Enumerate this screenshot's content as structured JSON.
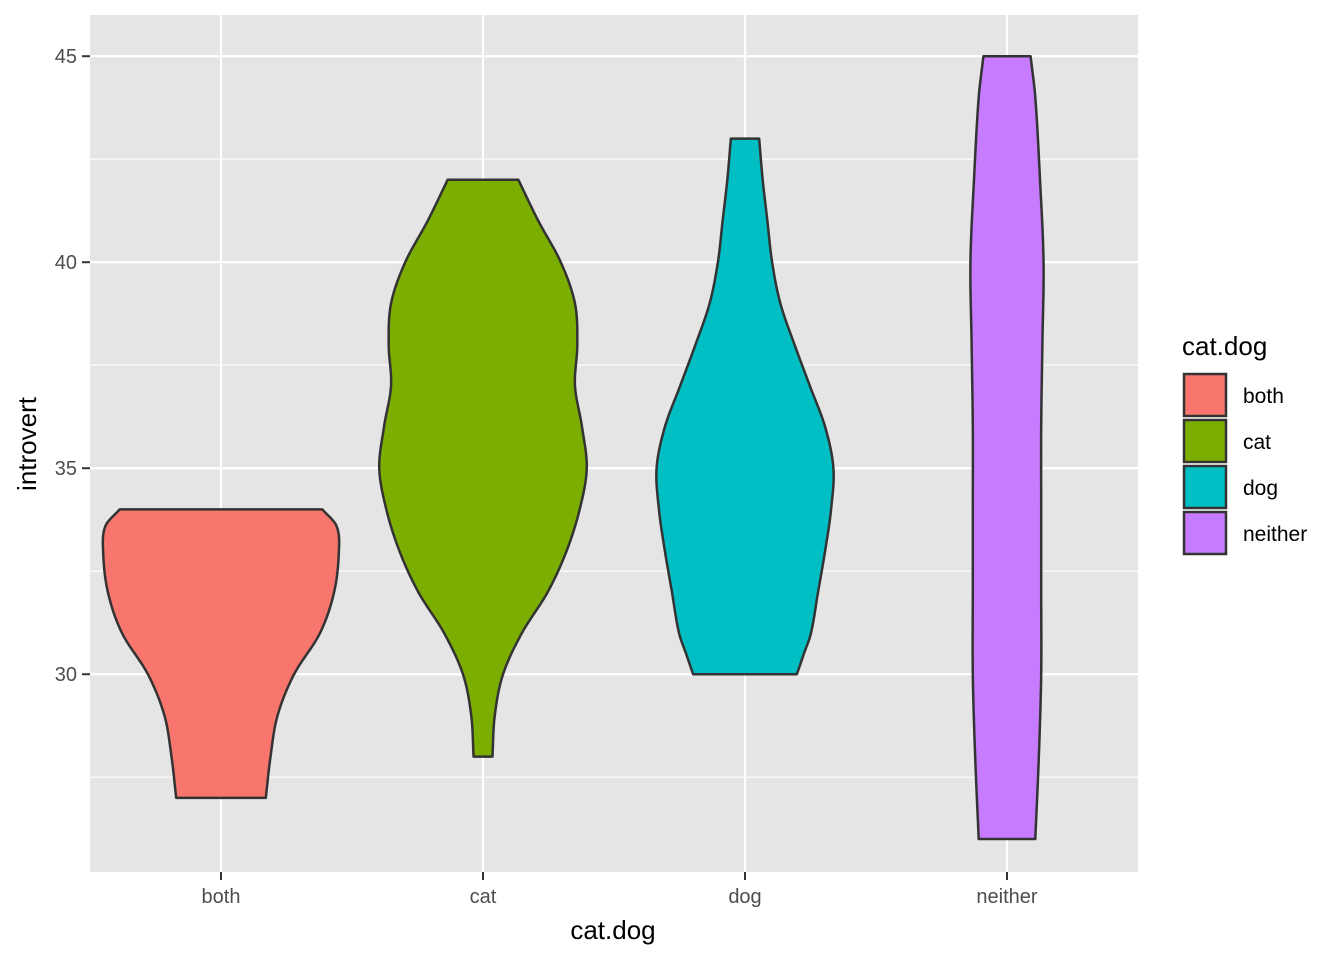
{
  "chart_data": {
    "type": "violin",
    "xlabel": "cat.dog",
    "ylabel": "introvert",
    "ylim": [
      25.2,
      46.0
    ],
    "y_ticks": [
      30,
      35,
      40,
      45
    ],
    "grid": true,
    "categories": [
      "both",
      "cat",
      "dog",
      "neither"
    ],
    "series": [
      {
        "name": "both",
        "color": "#F8766D",
        "range": [
          27,
          34
        ],
        "profile": [
          [
            27,
            0.38
          ],
          [
            28,
            0.42
          ],
          [
            29,
            0.48
          ],
          [
            30,
            0.62
          ],
          [
            31,
            0.84
          ],
          [
            32,
            0.96
          ],
          [
            33,
            1.0
          ],
          [
            33.6,
            0.98
          ],
          [
            34,
            0.86
          ]
        ]
      },
      {
        "name": "cat",
        "color": "#7CAE00",
        "range": [
          28,
          42
        ],
        "profile": [
          [
            28,
            0.08
          ],
          [
            29,
            0.1
          ],
          [
            30,
            0.17
          ],
          [
            31,
            0.33
          ],
          [
            32,
            0.55
          ],
          [
            33,
            0.71
          ],
          [
            34,
            0.82
          ],
          [
            35,
            0.88
          ],
          [
            36,
            0.84
          ],
          [
            37,
            0.78
          ],
          [
            38,
            0.8
          ],
          [
            39,
            0.78
          ],
          [
            40,
            0.66
          ],
          [
            41,
            0.47
          ],
          [
            42,
            0.3
          ]
        ]
      },
      {
        "name": "dog",
        "color": "#00BFC4",
        "range": [
          30,
          43
        ],
        "profile": [
          [
            30,
            0.44
          ],
          [
            30.5,
            0.5
          ],
          [
            31,
            0.56
          ],
          [
            32,
            0.62
          ],
          [
            33,
            0.68
          ],
          [
            34,
            0.73
          ],
          [
            35,
            0.75
          ],
          [
            36,
            0.68
          ],
          [
            37,
            0.55
          ],
          [
            38,
            0.42
          ],
          [
            39,
            0.3
          ],
          [
            40,
            0.23
          ],
          [
            41,
            0.19
          ],
          [
            42,
            0.15
          ],
          [
            43,
            0.12
          ]
        ]
      },
      {
        "name": "neither",
        "color": "#C77CFF",
        "range": [
          26,
          45
        ],
        "profile": [
          [
            26,
            0.24
          ],
          [
            28,
            0.27
          ],
          [
            30,
            0.29
          ],
          [
            32,
            0.29
          ],
          [
            34,
            0.29
          ],
          [
            36,
            0.29
          ],
          [
            38,
            0.3
          ],
          [
            40,
            0.31
          ],
          [
            42,
            0.28
          ],
          [
            44,
            0.24
          ],
          [
            45,
            0.2
          ]
        ]
      }
    ],
    "legend": {
      "title": "cat.dog",
      "position": "right",
      "items": [
        "both",
        "cat",
        "dog",
        "neither"
      ]
    },
    "panel_background": "#E5E5E5",
    "grid_color": "#FFFFFF",
    "outline_color": "#333333"
  }
}
